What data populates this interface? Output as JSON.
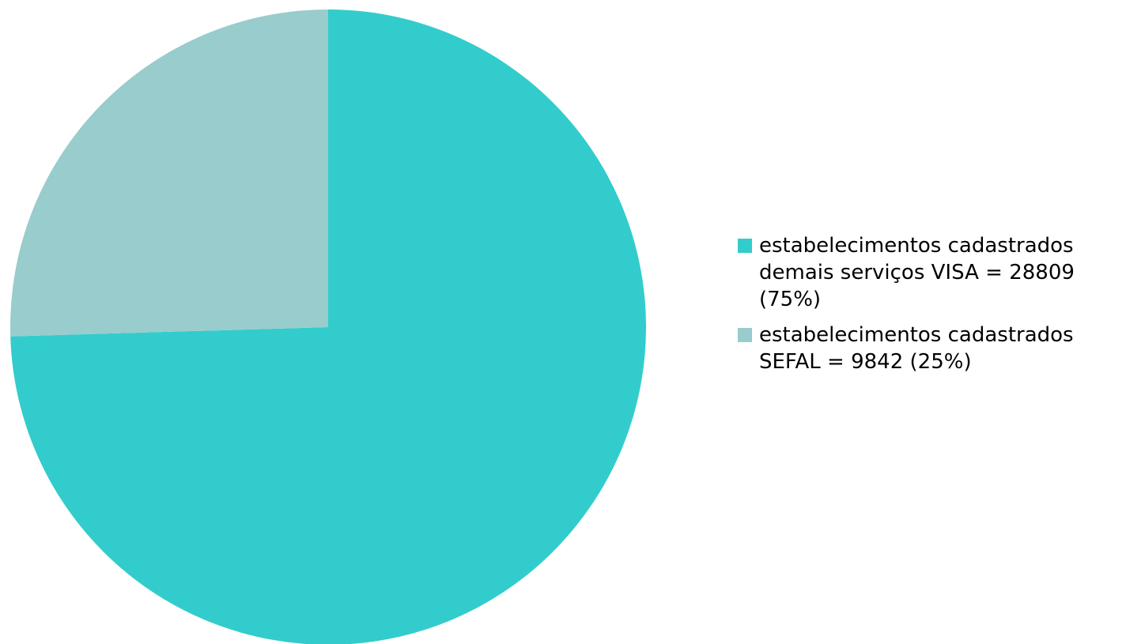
{
  "chart_data": {
    "type": "pie",
    "title": "",
    "slices": [
      {
        "label": "estabelecimentos cadastrados demais serviços VISA = 28809 (75%)",
        "value": 28809,
        "percent": 75,
        "color": "#33CCCC"
      },
      {
        "label": "estabelecimentos cadastrados SEFAL = 9842 (25%)",
        "value": 9842,
        "percent": 25,
        "color": "#99CCCC"
      }
    ],
    "legend_position": "right"
  }
}
